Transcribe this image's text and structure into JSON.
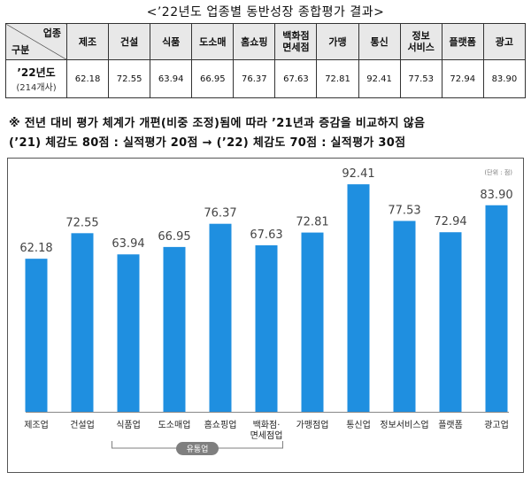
{
  "title": "<’22년도 업종별 동반성장 종합평가 결과>",
  "table": {
    "corner_top": "업종",
    "corner_bottom": "구분",
    "columns": [
      "제조",
      "건설",
      "식품",
      "도소매",
      "홈쇼핑",
      [
        "백화점",
        "면세점"
      ],
      "가맹",
      "통신",
      [
        "정보",
        "서비스"
      ],
      "플랫폼",
      "광고"
    ],
    "row_year": "’22년도",
    "row_count": "(214개사)",
    "values": [
      "62.18",
      "72.55",
      "63.94",
      "66.95",
      "76.37",
      "67.63",
      "72.81",
      "92.41",
      "77.53",
      "72.94",
      "83.90"
    ]
  },
  "note_line1": "※ 전년 대비 평가 체계가 개편(비중 조정)됨에 따라 ’21년과 증감을 비교하지 않음",
  "note_line2": "(’21) 체감도 80점 : 실적평가 20점 → (’22) 체감도 70점 : 실적평가 30점",
  "chart_unit": "(단위 : 점)",
  "chart_data": {
    "type": "bar",
    "categories": [
      "제조업",
      "건설업",
      "식품업",
      "도소매업",
      "홈쇼핑업",
      "백화점·면세점업",
      "가맹점업",
      "통신업",
      "정보서비스업",
      "플랫폼",
      "광고업"
    ],
    "category_lines": [
      [
        "제조업"
      ],
      [
        "건설업"
      ],
      [
        "식품업"
      ],
      [
        "도소매업"
      ],
      [
        "홈쇼핑업"
      ],
      [
        "백화점·",
        "면세점업"
      ],
      [
        "가맹점업"
      ],
      [
        "통신업"
      ],
      [
        "정보서비스업"
      ],
      [
        "플랫폼"
      ],
      [
        "광고업"
      ]
    ],
    "values": [
      62.18,
      72.55,
      63.94,
      66.95,
      76.37,
      67.63,
      72.81,
      92.41,
      77.53,
      72.94,
      83.9
    ],
    "value_labels": [
      "62.18",
      "72.55",
      "63.94",
      "66.95",
      "76.37",
      "67.63",
      "72.81",
      "92.41",
      "77.53",
      "72.94",
      "83.90"
    ],
    "bar_color": "#1f8fe0",
    "group_label": "유통업",
    "group_color": "#7f7f7f",
    "group_categories": [
      "식품업",
      "도소매업",
      "홈쇼핑업",
      "백화점·면세점업"
    ]
  }
}
